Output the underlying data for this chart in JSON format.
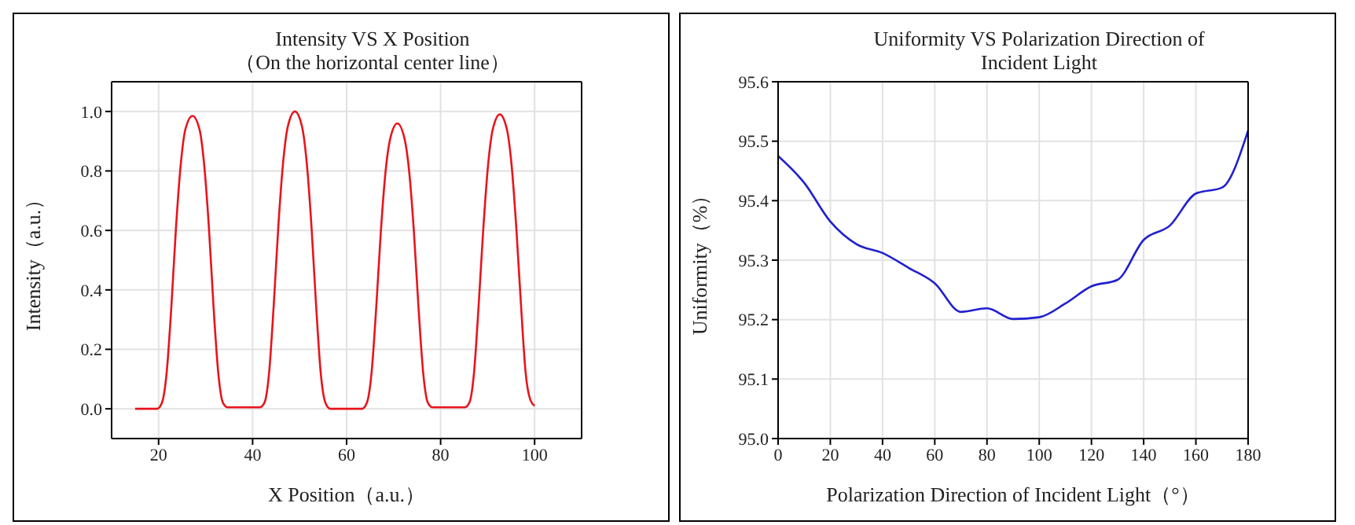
{
  "chart_data": [
    {
      "type": "line",
      "title": "Intensity VS X Position",
      "subtitle": "（On the horizontal center line）",
      "xlabel": "X Position（a.u.）",
      "ylabel": "Intensity（a.u.）",
      "xlim": [
        10,
        110
      ],
      "xticks": [
        20,
        40,
        60,
        80,
        100
      ],
      "ylim": [
        -0.1,
        1.1
      ],
      "yticks": [
        {
          "value": 0,
          "label": "0.0"
        },
        {
          "value": 0.2,
          "label": "0.2"
        },
        {
          "value": 0.4,
          "label": "0.4"
        },
        {
          "value": 0.6,
          "label": "0.6"
        },
        {
          "value": 0.8,
          "label": "0.8"
        },
        {
          "value": 1,
          "label": "1.0"
        }
      ],
      "grid": true,
      "marker": "none",
      "line_style": "solid",
      "series": [
        {
          "color": "#e8141c",
          "x": [
            15,
            18,
            19.7,
            20.7,
            21.7,
            22.7,
            23.7,
            24.7,
            25.7,
            27.2,
            28.7,
            29.7,
            30.7,
            31.7,
            32.7,
            33.7,
            34.7,
            37,
            40,
            41.5,
            42.5,
            43.5,
            44.5,
            45.5,
            46.5,
            47.5,
            49,
            50.5,
            51.5,
            52.5,
            53.5,
            54.5,
            55.5,
            56.5,
            58,
            61,
            63.3,
            64.3,
            65.3,
            66.3,
            67.3,
            68.3,
            69.3,
            70.8,
            72.3,
            73.3,
            74.3,
            75.3,
            76.3,
            77.3,
            78.3,
            80,
            83,
            85.1,
            86.1,
            87.1,
            88.1,
            89.1,
            90.1,
            91.1,
            92.6,
            94.1,
            95.1,
            96.1,
            97.1,
            98.1,
            99.1,
            100
          ],
          "values": [
            0,
            0,
            0,
            0.02,
            0.12,
            0.34,
            0.61,
            0.82,
            0.94,
            0.985,
            0.94,
            0.82,
            0.61,
            0.34,
            0.12,
            0.02,
            0.005,
            0.005,
            0.005,
            0.005,
            0.02,
            0.12,
            0.35,
            0.62,
            0.83,
            0.95,
            1,
            0.95,
            0.83,
            0.62,
            0.35,
            0.12,
            0.02,
            0,
            0,
            0,
            0,
            0.02,
            0.12,
            0.34,
            0.6,
            0.8,
            0.91,
            0.96,
            0.91,
            0.8,
            0.6,
            0.34,
            0.12,
            0.02,
            0.005,
            0.005,
            0.005,
            0.005,
            0.02,
            0.12,
            0.35,
            0.61,
            0.82,
            0.94,
            0.99,
            0.94,
            0.82,
            0.61,
            0.35,
            0.12,
            0.03,
            0.01
          ]
        }
      ]
    },
    {
      "type": "line",
      "title": "Uniformity VS Polarization Direction of Incident Light",
      "xlabel": "Polarization Direction of Incident Light（°）",
      "ylabel": "Uniformity（%）",
      "xlim": [
        0,
        180
      ],
      "xticks": [
        0,
        20,
        40,
        60,
        80,
        100,
        120,
        140,
        160,
        180
      ],
      "ylim": [
        95,
        95.6
      ],
      "yticks": [
        {
          "value": 95,
          "label": "95.0"
        },
        {
          "value": 95.1,
          "label": "95.1"
        },
        {
          "value": 95.2,
          "label": "95.2"
        },
        {
          "value": 95.3,
          "label": "95.3"
        },
        {
          "value": 95.4,
          "label": "95.4"
        },
        {
          "value": 95.5,
          "label": "95.5"
        },
        {
          "value": 95.6,
          "label": "95.6"
        }
      ],
      "grid": true,
      "marker": "none",
      "line_style": "solid",
      "series": [
        {
          "color": "#2020d0",
          "x": [
            0,
            10,
            20,
            30,
            40,
            50,
            60,
            70,
            80,
            90,
            100,
            110,
            120,
            130,
            140,
            150,
            160,
            170,
            180
          ],
          "values": [
            95.475,
            95.43,
            95.365,
            95.327,
            95.312,
            95.287,
            95.261,
            95.213,
            95.219,
            95.201,
            95.204,
            95.227,
            95.256,
            95.267,
            95.334,
            95.358,
            95.412,
            95.422,
            95.518
          ]
        }
      ]
    }
  ]
}
